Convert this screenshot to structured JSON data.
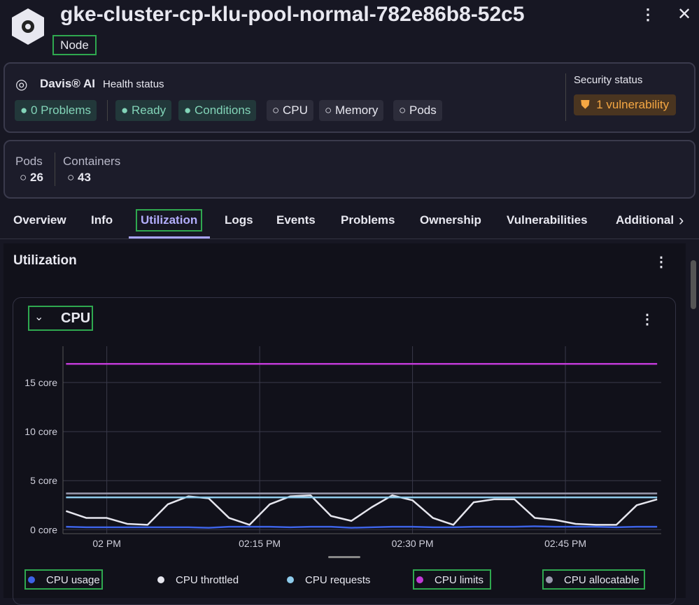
{
  "header": {
    "title": "gke-cluster-cp-klu-pool-normal-782e86b8-52c5",
    "badge": "Node"
  },
  "health": {
    "brand": "Davis® AI",
    "label": "Health status",
    "chips": [
      "0 Problems",
      "Ready",
      "Conditions",
      "CPU",
      "Memory",
      "Pods"
    ],
    "security_label": "Security status",
    "security_chip": "1 vulnerability"
  },
  "counts": [
    {
      "label": "Pods",
      "value": 26
    },
    {
      "label": "Containers",
      "value": 43
    }
  ],
  "tabs": [
    "Overview",
    "Info",
    "Utilization",
    "Logs",
    "Events",
    "Problems",
    "Ownership",
    "Vulnerabilities",
    "Additional"
  ],
  "section": {
    "title": "Utilization",
    "panel": "CPU"
  },
  "chart_data": {
    "type": "line",
    "x": [
      -4,
      -2,
      0,
      2,
      4,
      6,
      8,
      10,
      12,
      14,
      16,
      18,
      20,
      22,
      24,
      26,
      28,
      30,
      32,
      34,
      36,
      38,
      40,
      42,
      44,
      46,
      48,
      50,
      52,
      54
    ],
    "xlim": [
      -4.3,
      54.4
    ],
    "xticks": [
      {
        "value": 0,
        "label": "02 PM"
      },
      {
        "value": 15,
        "label": "02:15 PM"
      },
      {
        "value": 30,
        "label": "02:30 PM"
      },
      {
        "value": 45,
        "label": "02:45 PM"
      }
    ],
    "ylim": [
      -0.4,
      18.7
    ],
    "yticks": [
      {
        "value": 0,
        "label": "0 core"
      },
      {
        "value": 5,
        "label": "5 core"
      },
      {
        "value": 10,
        "label": "10 core"
      },
      {
        "value": 15,
        "label": "15 core"
      }
    ],
    "grid": true,
    "series": [
      {
        "name": "CPU usage",
        "color": "#3d63e6",
        "values": [
          0.3,
          0.25,
          0.25,
          0.25,
          0.25,
          0.25,
          0.25,
          0.2,
          0.3,
          0.3,
          0.3,
          0.25,
          0.3,
          0.3,
          0.2,
          0.25,
          0.3,
          0.3,
          0.25,
          0.25,
          0.3,
          0.3,
          0.3,
          0.35,
          0.3,
          0.3,
          0.3,
          0.25,
          0.3,
          0.3
        ]
      },
      {
        "name": "CPU throttled",
        "color": "#e6e6ee",
        "values": [
          1.9,
          1.2,
          1.2,
          0.6,
          0.5,
          2.6,
          3.4,
          3.2,
          1.2,
          0.5,
          2.6,
          3.4,
          3.5,
          1.4,
          0.9,
          2.3,
          3.5,
          3.0,
          1.2,
          0.5,
          2.8,
          3.1,
          3.1,
          1.2,
          1.0,
          0.6,
          0.5,
          0.5,
          2.5,
          3.1
        ]
      },
      {
        "name": "CPU requests",
        "color": "#8ecbeb",
        "values": [
          3.3,
          3.3,
          3.3,
          3.3,
          3.3,
          3.3,
          3.3,
          3.3,
          3.3,
          3.3,
          3.3,
          3.3,
          3.3,
          3.3,
          3.3,
          3.3,
          3.3,
          3.3,
          3.3,
          3.3,
          3.3,
          3.3,
          3.3,
          3.3,
          3.3,
          3.3,
          3.3,
          3.3,
          3.3,
          3.3
        ]
      },
      {
        "name": "CPU limits",
        "color": "#c03ad6",
        "values": [
          16.9,
          16.9,
          16.9,
          16.9,
          16.9,
          16.9,
          16.9,
          16.9,
          16.9,
          16.9,
          16.9,
          16.9,
          16.9,
          16.9,
          16.9,
          16.9,
          16.9,
          16.9,
          16.9,
          16.9,
          16.9,
          16.9,
          16.9,
          16.9,
          16.9,
          16.9,
          16.9,
          16.9,
          16.9,
          16.9
        ]
      },
      {
        "name": "CPU allocatable",
        "color": "#9a9aae",
        "values": [
          3.7,
          3.7,
          3.7,
          3.7,
          3.7,
          3.7,
          3.7,
          3.7,
          3.7,
          3.7,
          3.7,
          3.7,
          3.7,
          3.7,
          3.7,
          3.7,
          3.7,
          3.7,
          3.7,
          3.7,
          3.7,
          3.7,
          3.7,
          3.7,
          3.7,
          3.7,
          3.7,
          3.7,
          3.7,
          3.7
        ]
      }
    ]
  }
}
